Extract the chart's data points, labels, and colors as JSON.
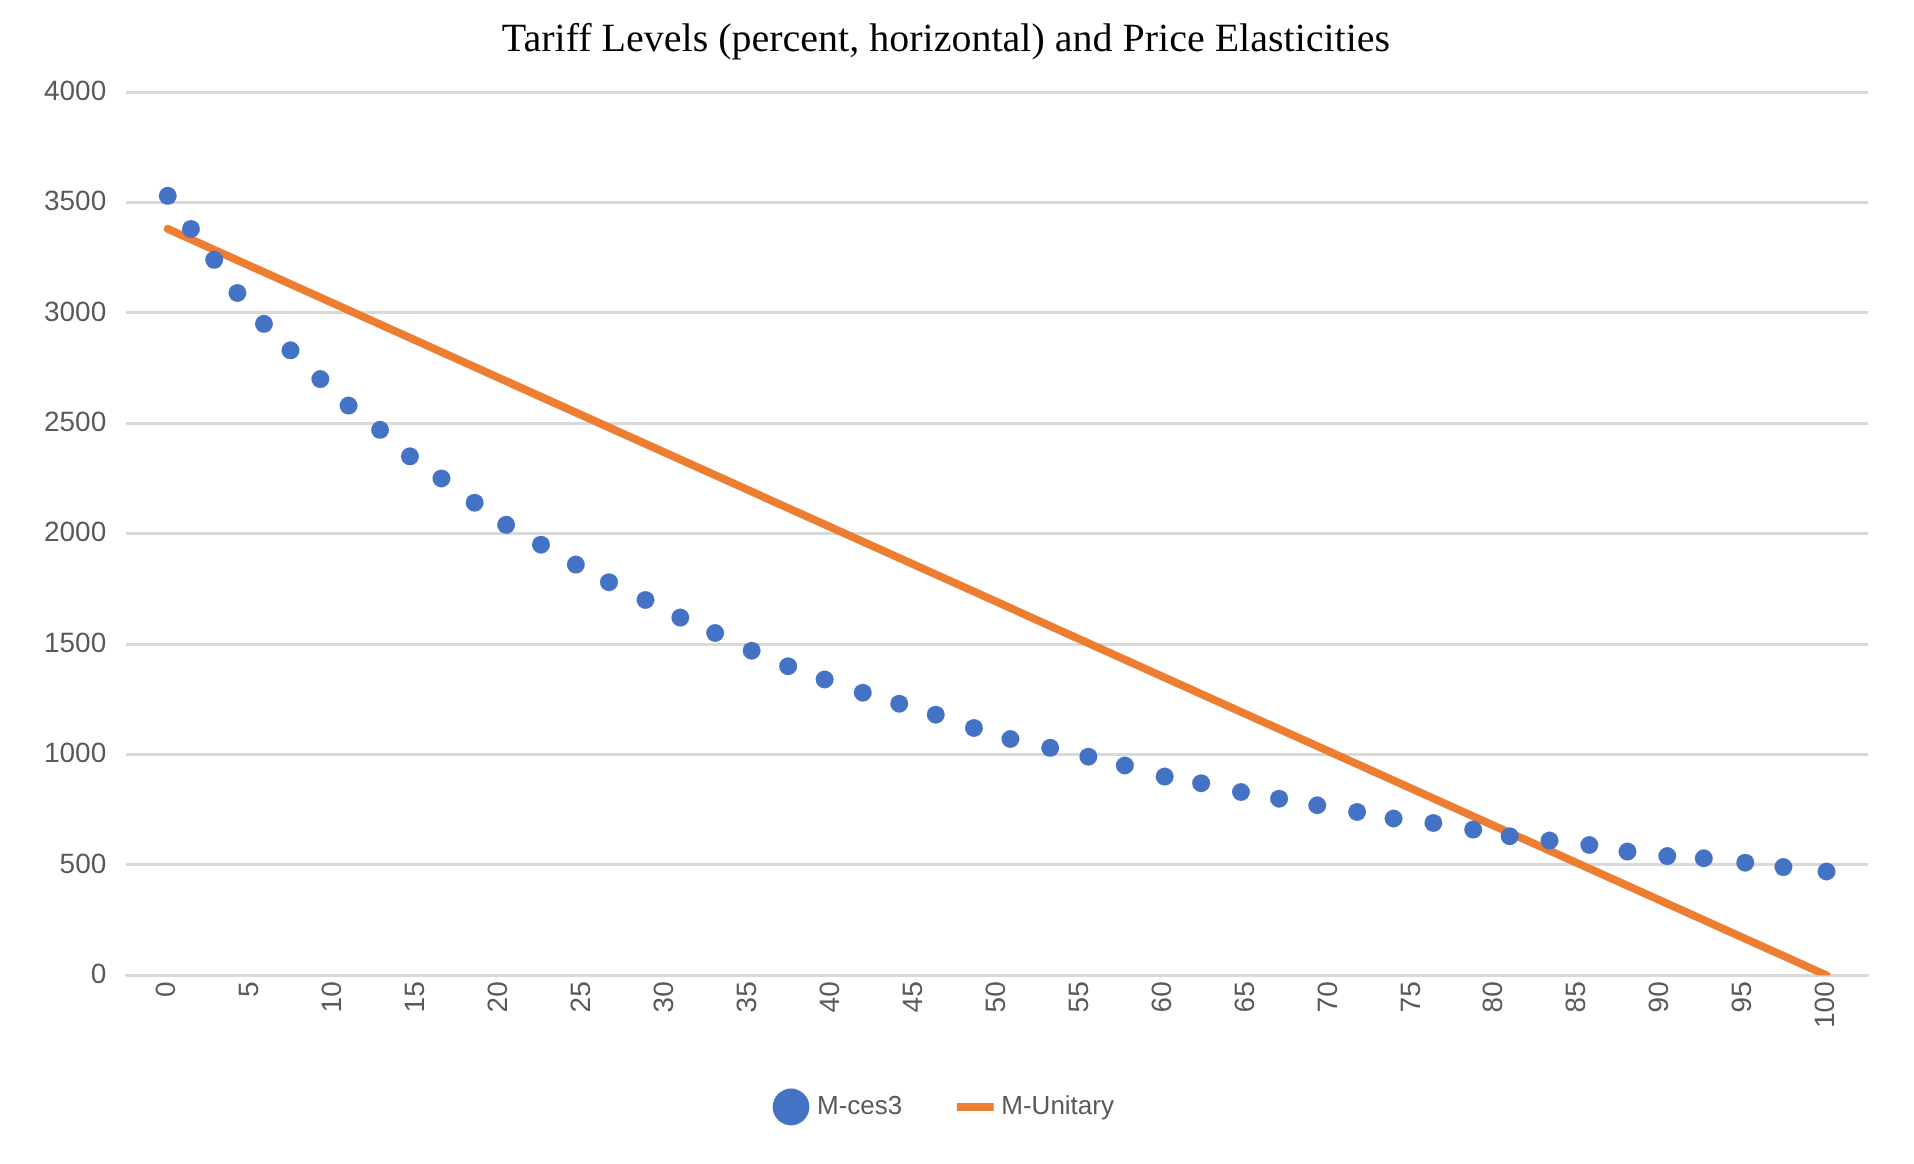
{
  "chart_data": {
    "type": "scatter",
    "title": "Tariff Levels (percent, horizontal) and Price Elasticities",
    "series": [
      {
        "name": "M-ces3",
        "type": "scatter",
        "color": "#4472c4",
        "marker": "circle",
        "x": [
          0,
          1.4,
          2.8,
          4.2,
          5.8,
          7.4,
          9.2,
          10.9,
          12.8,
          14.6,
          16.5,
          18.5,
          20.4,
          22.5,
          24.6,
          26.6,
          28.8,
          30.9,
          33.0,
          35.2,
          37.4,
          39.6,
          41.9,
          44.1,
          46.3,
          48.6,
          50.8,
          53.2,
          55.5,
          57.7,
          60.1,
          62.3,
          64.7,
          67.0,
          69.3,
          71.7,
          73.9,
          76.3,
          78.7,
          80.9,
          83.3,
          85.7,
          88.0,
          90.4,
          92.6,
          95.1,
          97.4,
          100
        ],
        "values": [
          3530,
          3380,
          3240,
          3090,
          2950,
          2830,
          2700,
          2580,
          2470,
          2350,
          2250,
          2140,
          2040,
          1950,
          1860,
          1780,
          1700,
          1620,
          1550,
          1470,
          1400,
          1340,
          1280,
          1230,
          1180,
          1120,
          1070,
          1030,
          990,
          950,
          900,
          870,
          830,
          800,
          770,
          740,
          710,
          690,
          660,
          630,
          610,
          590,
          560,
          540,
          530,
          510,
          490,
          470
        ]
      },
      {
        "name": "M-Unitary",
        "type": "line",
        "color": "#ed7d31",
        "marker": "none",
        "line_style": "solid",
        "x": [
          0,
          100
        ],
        "values": [
          3380,
          0
        ]
      }
    ],
    "xlim": [
      -2.5,
      102.5
    ],
    "xticks": [
      0,
      5,
      10,
      15,
      20,
      25,
      30,
      35,
      40,
      45,
      50,
      55,
      60,
      65,
      70,
      75,
      80,
      85,
      90,
      95,
      100
    ],
    "ylim": [
      0,
      4000
    ],
    "yticks": [
      0,
      500,
      1000,
      1500,
      2000,
      2500,
      3000,
      3500,
      4000
    ],
    "grid": "y",
    "legend": "bottom"
  }
}
